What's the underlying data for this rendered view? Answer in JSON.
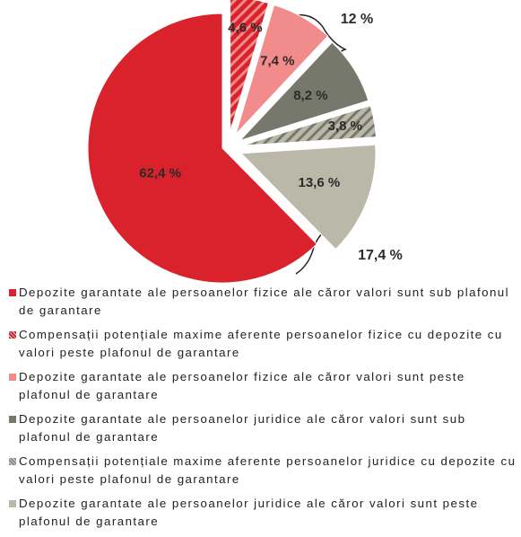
{
  "chart_data": {
    "type": "pie",
    "categories": [
      "Depozite garantate ale persoanelor fizice ale căror valori sunt sub plafonul de garantare",
      "Compensații potențiale maxime aferente persoanelor fizice cu depozite cu valori peste plafonul de garantare",
      "Depozite garantate ale persoanelor fizice ale căror valori sunt peste plafonul de garantare",
      "Depozite garantate ale persoanelor juridice ale căror valori sunt sub plafonul de garantare",
      "Compensații potențiale maxime aferente persoanelor juridice cu depozite cu valori peste plafonul de garantare",
      "Depozite garantate ale persoanelor juridice ale căror valori sunt peste plafonul de garantare"
    ],
    "values": [
      62.4,
      4.6,
      7.4,
      8.2,
      3.8,
      13.6
    ],
    "value_labels": [
      "62,4 %",
      "4,6 %",
      "7,4 %",
      "8,2 %",
      "3,8 %",
      "13,6 %"
    ],
    "colors": [
      "#d9222b",
      "#d9222b",
      "#f28b8b",
      "#77786c",
      "#8a8a7d",
      "#bab8a9"
    ],
    "hatched": [
      false,
      true,
      false,
      false,
      true,
      false
    ],
    "annotations": [
      "12 %",
      "17,4 %"
    ],
    "legend": "bottom"
  }
}
